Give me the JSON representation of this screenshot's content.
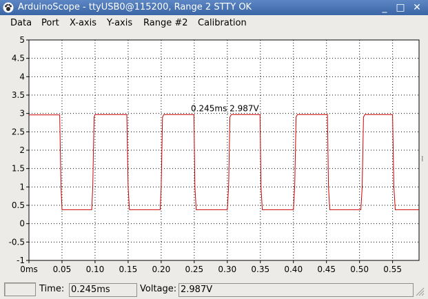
{
  "window": {
    "title": "ArduinoScope - ttyUSB0@115200, Range 2 STTY OK",
    "buttons": {
      "minimize": "_",
      "maximize": "□",
      "close": "✕"
    }
  },
  "menu": [
    "Data",
    "Port",
    "X-axis",
    "Y-axis",
    "Range #2",
    "Calibration"
  ],
  "status": {
    "time_label": "Time:",
    "time_value": "0.245ms",
    "voltage_label": "Voltage:",
    "voltage_value": "2.987V"
  },
  "colors": {
    "trace": "#cc0000",
    "titlebar": "#4a74b5"
  },
  "chart_data": {
    "type": "line",
    "title": "",
    "xlabel": "",
    "ylabel": "",
    "x_ticks": [
      "0ms",
      "0.05",
      "0.10",
      "0.15",
      "0.20",
      "0.25",
      "0.30",
      "0.35",
      "0.40",
      "0.45",
      "0.50",
      "0.55"
    ],
    "y_ticks": [
      "-1",
      "-0.5",
      "0",
      "0.5",
      "1",
      "1.5",
      "2",
      "2.5",
      "3",
      "3.5",
      "4",
      "4.5",
      "5"
    ],
    "xlim": [
      0,
      0.59
    ],
    "ylim": [
      -1,
      5
    ],
    "grid": true,
    "cursor_label": "0.245ms 2.987V",
    "cursor_point": {
      "x": 0.245,
      "y": 2.987
    },
    "series": [
      {
        "values_x": [
          0,
          0.0465,
          0.0485,
          0.05,
          0.095,
          0.0965,
          0.0985,
          0.1,
          0.148,
          0.15,
          0.152,
          0.154,
          0.1985,
          0.2,
          0.202,
          0.204,
          0.2495,
          0.251,
          0.253,
          0.255,
          0.3,
          0.302,
          0.304,
          0.306,
          0.3495,
          0.351,
          0.353,
          0.355,
          0.4,
          0.402,
          0.404,
          0.406,
          0.4515,
          0.453,
          0.455,
          0.457,
          0.502,
          0.504,
          0.506,
          0.508,
          0.55,
          0.552,
          0.554,
          0.556,
          0.59
        ],
        "values_y": [
          2.96,
          2.96,
          1.0,
          0.38,
          0.38,
          1.0,
          2.9,
          2.97,
          2.97,
          1.0,
          0.38,
          0.38,
          0.38,
          1.0,
          2.9,
          2.97,
          2.97,
          1.0,
          0.38,
          0.38,
          0.38,
          1.0,
          2.9,
          2.97,
          2.97,
          1.0,
          0.38,
          0.38,
          0.38,
          1.0,
          2.9,
          2.97,
          2.97,
          1.0,
          0.38,
          0.38,
          0.38,
          1.0,
          2.9,
          2.97,
          2.97,
          1.0,
          0.38,
          0.38,
          0.38
        ]
      }
    ]
  }
}
